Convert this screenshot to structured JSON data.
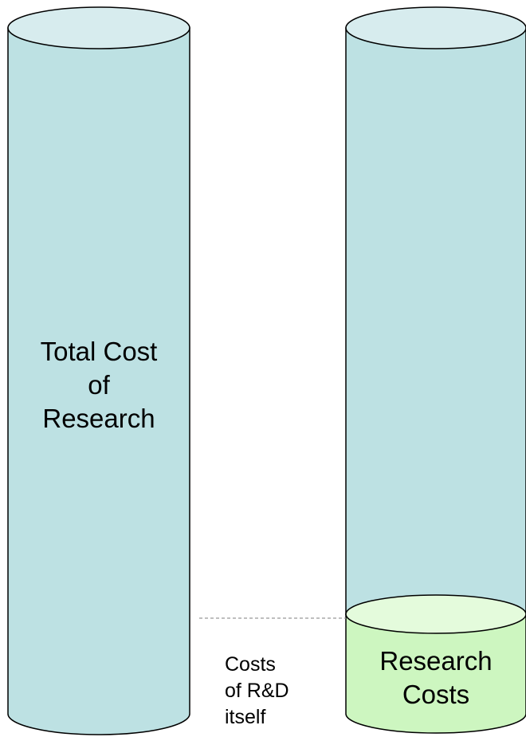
{
  "diagram": {
    "colors": {
      "tube_fill": "#bde1e3",
      "tube_top": "#d7ecee",
      "segment_fill": "#cdf6c0",
      "segment_top": "#e4fbdc",
      "outline": "#000000",
      "dashed_line": "#999999"
    },
    "left_cylinder": {
      "label_lines": [
        "Total Cost",
        "of",
        "Research"
      ]
    },
    "right_cylinder": {
      "segment_label_lines": [
        "Research",
        "Costs"
      ]
    },
    "annotation": {
      "label_lines": [
        "Costs",
        "of R&D",
        "itself"
      ]
    }
  }
}
